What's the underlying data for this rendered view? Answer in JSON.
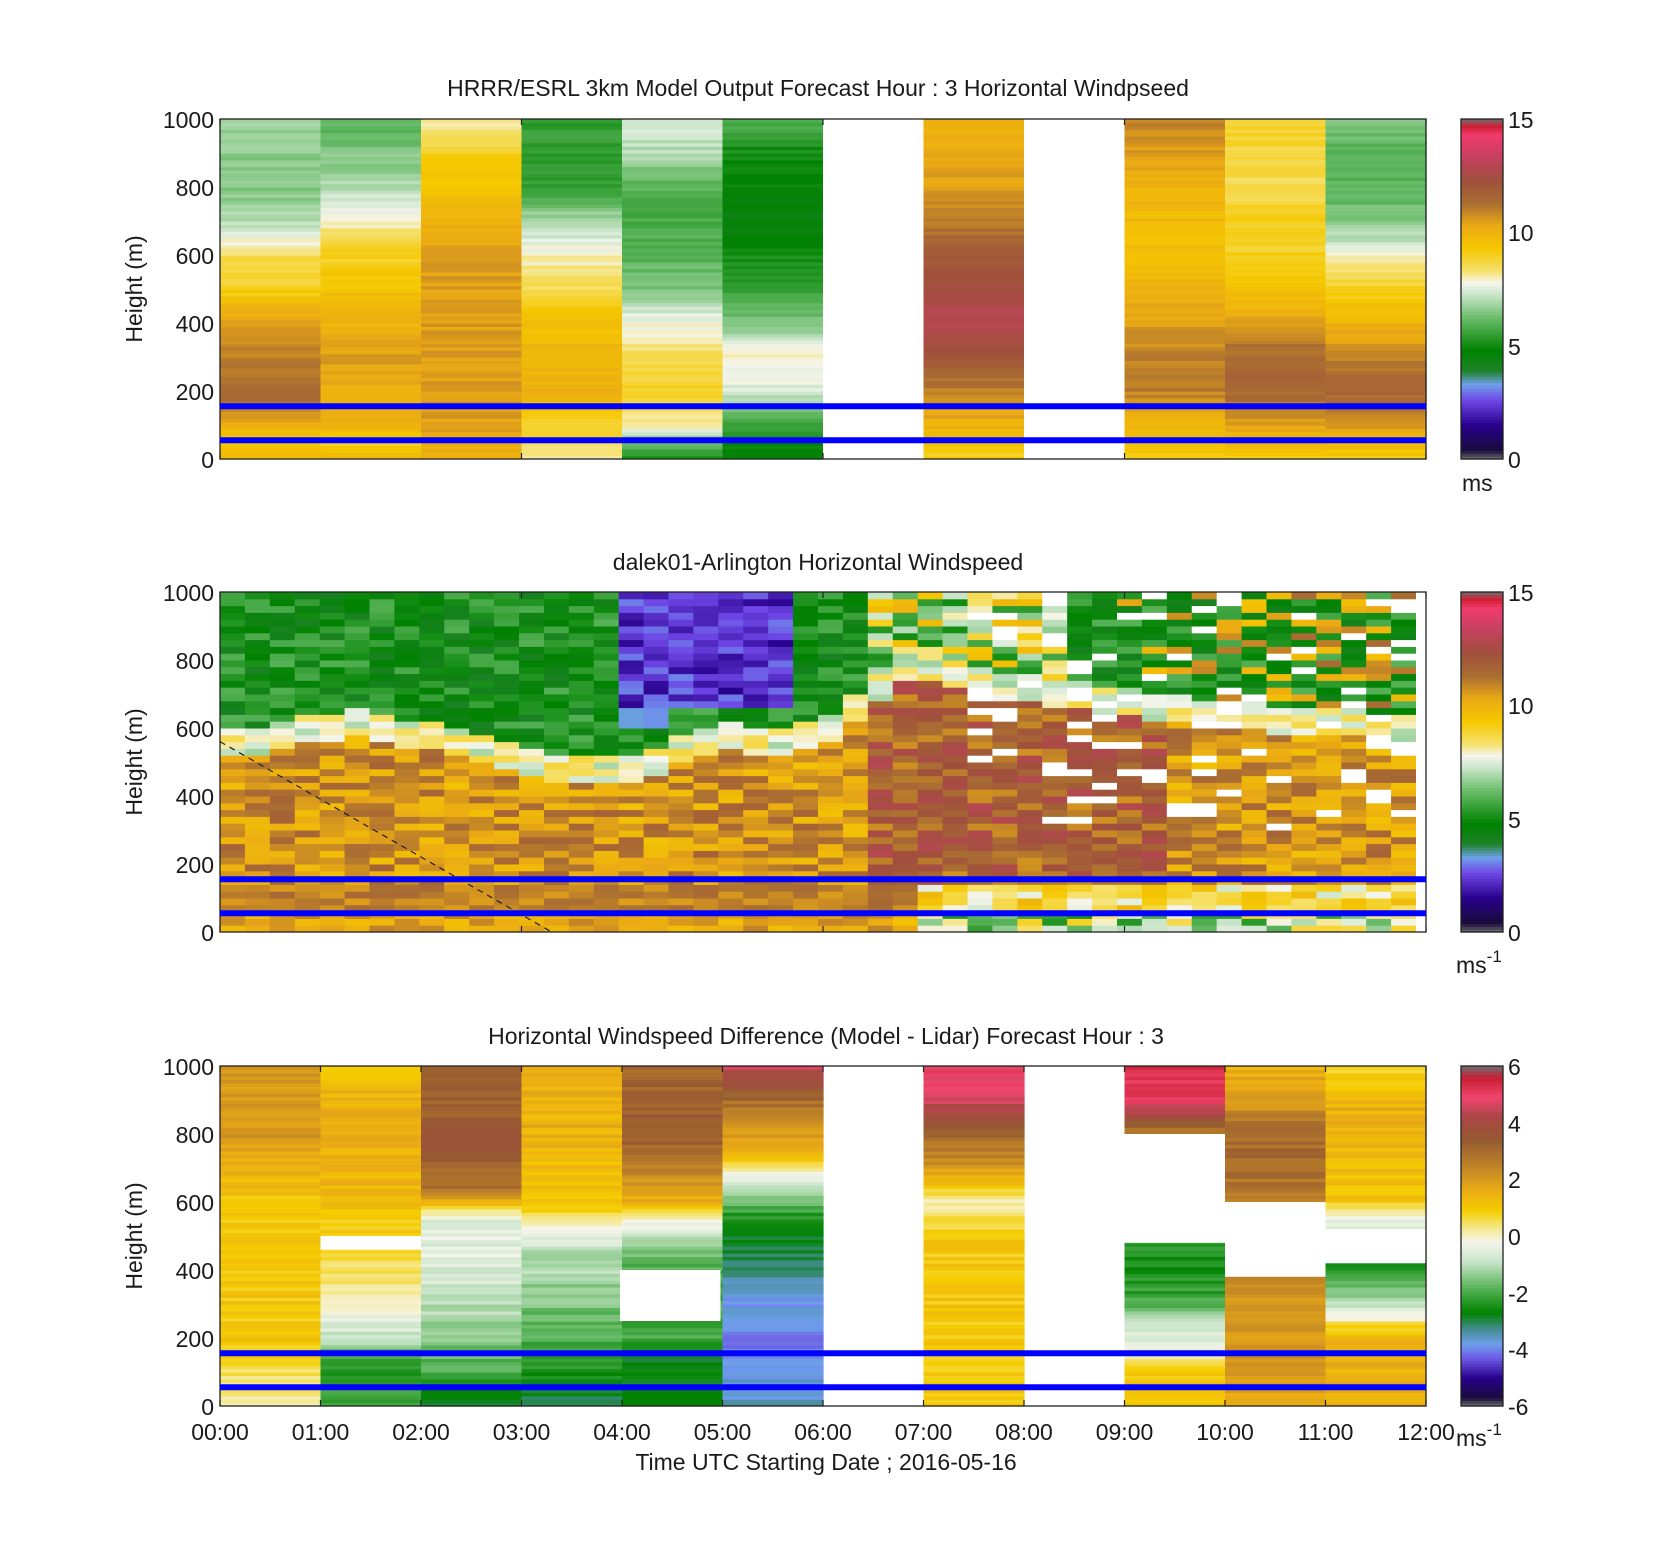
{
  "chart_data": [
    {
      "type": "heatmap",
      "title": "HRRR/ESRL 3km Model Output   Forecast Hour : 3 Horizontal Windpseed",
      "ylabel": "Height (m)",
      "ylim": [
        0,
        1000
      ],
      "yticks": [
        "0",
        "200",
        "400",
        "600",
        "800",
        "1000"
      ],
      "xlim_hours": [
        0,
        12
      ],
      "colorbar": {
        "ticks": [
          "0",
          "5",
          "10",
          "15"
        ],
        "range": [
          0,
          15
        ],
        "unit_base": "ms",
        "unit_exp": ""
      },
      "reference_lines_m": [
        55,
        155
      ],
      "missing_time_blocks_h": [
        [
          6,
          7
        ],
        [
          8,
          9
        ]
      ],
      "values_by_hour": [
        {
          "t": "00:00",
          "profile": [
            [
              0,
              10
            ],
            [
              50,
              9
            ],
            [
              100,
              10
            ],
            [
              150,
              11
            ],
            [
              200,
              11.5
            ],
            [
              300,
              11
            ],
            [
              400,
              10.5
            ],
            [
              500,
              9
            ],
            [
              600,
              8.5
            ],
            [
              700,
              7
            ],
            [
              800,
              6.5
            ],
            [
              1000,
              6.8
            ]
          ]
        },
        {
          "t": "01:00",
          "profile": [
            [
              0,
              10
            ],
            [
              50,
              9
            ],
            [
              100,
              10
            ],
            [
              150,
              10
            ],
            [
              300,
              10.5
            ],
            [
              500,
              9.5
            ],
            [
              600,
              9
            ],
            [
              700,
              8
            ],
            [
              800,
              7
            ],
            [
              1000,
              6
            ]
          ]
        },
        {
          "t": "02:00",
          "profile": [
            [
              0,
              10
            ],
            [
              100,
              10.5
            ],
            [
              300,
              10.5
            ],
            [
              500,
              10.5
            ],
            [
              600,
              10.5
            ],
            [
              700,
              10
            ],
            [
              800,
              9.5
            ],
            [
              900,
              9
            ],
            [
              1000,
              8
            ]
          ]
        },
        {
          "t": "03:00",
          "profile": [
            [
              0,
              8
            ],
            [
              100,
              9
            ],
            [
              200,
              10
            ],
            [
              300,
              10
            ],
            [
              400,
              9.5
            ],
            [
              500,
              8.5
            ],
            [
              600,
              8
            ],
            [
              700,
              7
            ],
            [
              800,
              5.5
            ],
            [
              1000,
              5.5
            ]
          ]
        },
        {
          "t": "04:00",
          "profile": [
            [
              0,
              5
            ],
            [
              100,
              8
            ],
            [
              200,
              9
            ],
            [
              300,
              8.5
            ],
            [
              400,
              7.8
            ],
            [
              500,
              6.5
            ],
            [
              600,
              6
            ],
            [
              700,
              5.8
            ],
            [
              800,
              6
            ],
            [
              900,
              7
            ],
            [
              1000,
              7.5
            ]
          ]
        },
        {
          "t": "05:00",
          "profile": [
            [
              0,
              4.5
            ],
            [
              100,
              5.5
            ],
            [
              200,
              7.5
            ],
            [
              300,
              8
            ],
            [
              400,
              6.5
            ],
            [
              500,
              5.5
            ],
            [
              600,
              5
            ],
            [
              700,
              4.5
            ],
            [
              900,
              5
            ],
            [
              1000,
              6
            ]
          ]
        },
        {
          "t": "07:00",
          "profile": [
            [
              0,
              9
            ],
            [
              100,
              10
            ],
            [
              200,
              11
            ],
            [
              300,
              12
            ],
            [
              400,
              13
            ],
            [
              500,
              12.5
            ],
            [
              600,
              12
            ],
            [
              700,
              11
            ],
            [
              800,
              10.5
            ],
            [
              1000,
              10
            ]
          ]
        },
        {
          "t": "09:00",
          "profile": [
            [
              0,
              9
            ],
            [
              100,
              10
            ],
            [
              200,
              11
            ],
            [
              300,
              11
            ],
            [
              400,
              10.5
            ],
            [
              500,
              10
            ],
            [
              600,
              9.5
            ],
            [
              800,
              10
            ],
            [
              900,
              10.5
            ],
            [
              1000,
              11
            ]
          ]
        },
        {
          "t": "10:00",
          "profile": [
            [
              0,
              9
            ],
            [
              100,
              10.5
            ],
            [
              200,
              11.5
            ],
            [
              300,
              11.5
            ],
            [
              400,
              10.5
            ],
            [
              500,
              9.5
            ],
            [
              600,
              9
            ],
            [
              700,
              9
            ],
            [
              800,
              8.5
            ],
            [
              1000,
              9
            ]
          ]
        },
        {
          "t": "11:00",
          "profile": [
            [
              0,
              9
            ],
            [
              100,
              10.5
            ],
            [
              200,
              11.5
            ],
            [
              300,
              11
            ],
            [
              400,
              10
            ],
            [
              500,
              9
            ],
            [
              600,
              7.8
            ],
            [
              700,
              6.5
            ],
            [
              800,
              6
            ],
            [
              900,
              6
            ],
            [
              1000,
              6.5
            ]
          ]
        }
      ]
    },
    {
      "type": "heatmap",
      "title": "dalek01-Arlington  Horizontal Windspeed",
      "ylabel": "Height (m)",
      "ylim": [
        0,
        1000
      ],
      "yticks": [
        "0",
        "200",
        "400",
        "600",
        "800",
        "1000"
      ],
      "xlim_hours": [
        0,
        12
      ],
      "colorbar": {
        "ticks": [
          "0",
          "5",
          "10",
          "15"
        ],
        "range": [
          0,
          15
        ],
        "unit_base": "ms",
        "unit_exp": "-1"
      },
      "reference_lines_m": [
        55,
        155
      ],
      "dashed_line": {
        "from": [
          0,
          560
        ],
        "to": [
          3.3,
          0
        ]
      },
      "boundary_layer_top_m": [
        [
          0,
          550
        ],
        [
          1,
          600
        ],
        [
          1.5,
          620
        ],
        [
          2,
          580
        ],
        [
          3,
          520
        ],
        [
          3.5,
          480
        ],
        [
          4,
          470
        ],
        [
          4.5,
          520
        ],
        [
          5,
          580
        ],
        [
          5.5,
          560
        ],
        [
          6,
          580
        ],
        [
          6.5,
          700
        ],
        [
          7,
          800
        ],
        [
          8,
          720
        ],
        [
          9,
          680
        ],
        [
          10,
          640
        ],
        [
          11,
          620
        ],
        [
          12,
          600
        ]
      ],
      "sample_values": {
        "surface": 10,
        "bl_core": 10.5,
        "above_bl": 4,
        "jet_core_04_05h_800m": 1.5
      }
    },
    {
      "type": "heatmap",
      "title": "Horizontal Windspeed Difference (Model - Lidar) Forecast Hour : 3",
      "xlabel": "Time UTC  Starting Date ; 2016-05-16",
      "ylabel": "Height (m)",
      "ylim": [
        0,
        1000
      ],
      "yticks": [
        "0",
        "200",
        "400",
        "600",
        "800",
        "1000"
      ],
      "xticks": [
        "00:00",
        "01:00",
        "02:00",
        "03:00",
        "04:00",
        "05:00",
        "06:00",
        "07:00",
        "08:00",
        "09:00",
        "10:00",
        "11:00",
        "12:00"
      ],
      "xlim_hours": [
        0,
        12
      ],
      "colorbar": {
        "ticks": [
          "-6",
          "-4",
          "-2",
          "0",
          "2",
          "4",
          "6"
        ],
        "range": [
          -6,
          6
        ],
        "unit_base": "ms",
        "unit_exp": "-1"
      },
      "reference_lines_m": [
        55,
        155
      ],
      "values_by_hour": [
        {
          "t": "00:00",
          "profile": [
            [
              0,
              0
            ],
            [
              100,
              0.5
            ],
            [
              200,
              1
            ],
            [
              400,
              1
            ],
            [
              600,
              1
            ],
            [
              800,
              2
            ],
            [
              1000,
              2
            ]
          ]
        },
        {
          "t": "01:00",
          "profile": [
            [
              0,
              -2
            ],
            [
              100,
              -2.5
            ],
            [
              200,
              -1
            ],
            [
              300,
              0
            ],
            [
              400,
              0.5
            ],
            [
              550,
              1
            ],
            [
              700,
              1.5
            ],
            [
              900,
              1.5
            ],
            [
              1000,
              1
            ]
          ]
        },
        {
          "t": "02:00",
          "profile": [
            [
              0,
              -3
            ],
            [
              100,
              -2
            ],
            [
              200,
              -1.5
            ],
            [
              300,
              -1
            ],
            [
              450,
              -0.5
            ],
            [
              550,
              -0.5
            ],
            [
              650,
              3
            ],
            [
              800,
              3.5
            ],
            [
              1000,
              3
            ]
          ]
        },
        {
          "t": "03:00",
          "profile": [
            [
              0,
              -3
            ],
            [
              100,
              -2.5
            ],
            [
              200,
              -2
            ],
            [
              300,
              -1.5
            ],
            [
              450,
              -1
            ],
            [
              600,
              1
            ],
            [
              800,
              1.5
            ],
            [
              1000,
              1.5
            ]
          ]
        },
        {
          "t": "04:00",
          "profile": [
            [
              0,
              -3
            ],
            [
              100,
              -2.5
            ],
            [
              150,
              -3
            ],
            [
              200,
              -2
            ],
            [
              400,
              -2
            ],
            [
              500,
              -1
            ],
            [
              600,
              1.5
            ],
            [
              800,
              3.5
            ],
            [
              1000,
              3
            ]
          ]
        },
        {
          "t": "05:00",
          "profile": [
            [
              0,
              -3.5
            ],
            [
              150,
              -4
            ],
            [
              250,
              -4
            ],
            [
              350,
              -3.5
            ],
            [
              450,
              -3
            ],
            [
              550,
              -2.5
            ],
            [
              650,
              -1
            ],
            [
              750,
              1.5
            ],
            [
              900,
              3
            ],
            [
              1000,
              4.5
            ]
          ]
        },
        {
          "t": "07:00",
          "profile": [
            [
              0,
              1
            ],
            [
              100,
              1
            ],
            [
              300,
              1
            ],
            [
              500,
              1
            ],
            [
              600,
              0
            ],
            [
              700,
              2
            ],
            [
              800,
              3
            ],
            [
              900,
              4.5
            ],
            [
              1000,
              5
            ]
          ]
        },
        {
          "t": "09:00",
          "profile": [
            [
              0,
              1
            ],
            [
              100,
              1
            ],
            [
              150,
              0
            ],
            [
              250,
              -1
            ],
            [
              300,
              -2
            ],
            [
              400,
              -2.5
            ],
            [
              450,
              -2.5
            ],
            [
              820,
              3
            ],
            [
              900,
              5
            ],
            [
              1000,
              5.5
            ]
          ]
        },
        {
          "t": "10:00",
          "profile": [
            [
              0,
              1.5
            ],
            [
              100,
              2
            ],
            [
              200,
              2
            ],
            [
              300,
              2
            ],
            [
              380,
              2.5
            ],
            [
              600,
              2.5
            ],
            [
              700,
              3
            ],
            [
              800,
              3
            ],
            [
              900,
              2
            ],
            [
              1000,
              1.5
            ]
          ]
        },
        {
          "t": "11:00",
          "profile": [
            [
              0,
              1.5
            ],
            [
              100,
              1.5
            ],
            [
              200,
              1.5
            ],
            [
              300,
              -1
            ],
            [
              380,
              -2
            ],
            [
              450,
              -2.5
            ],
            [
              520,
              -1
            ],
            [
              600,
              1
            ],
            [
              800,
              1.5
            ],
            [
              900,
              1.5
            ],
            [
              1000,
              0.5
            ]
          ]
        }
      ]
    }
  ]
}
